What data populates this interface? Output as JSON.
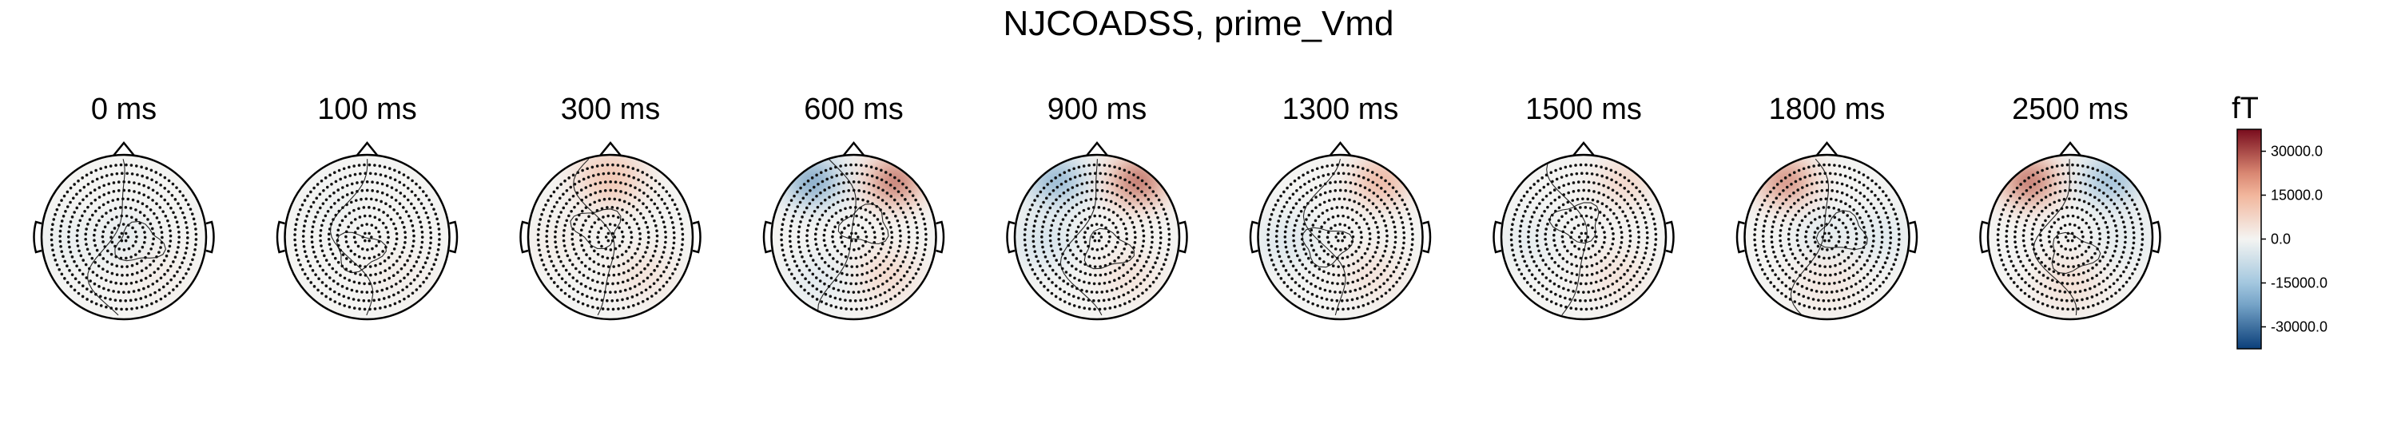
{
  "chart_data": {
    "type": "topomap",
    "title": "NJCOADSS, prime_Vmd",
    "unit": "fT",
    "colorbar": {
      "range": [
        -37500,
        37500
      ],
      "ticks": [
        30000.0,
        15000.0,
        0.0,
        -15000.0,
        -30000.0
      ],
      "tick_labels": [
        "30000.0",
        "15000.0",
        "0.0",
        "-15000.0",
        "-30000.0"
      ],
      "colormap": "RdBu_r",
      "colors": {
        "negative_max": "#0b3f7a",
        "negative_mid": "#8fbcda",
        "zero": "#f4f4f2",
        "positive_mid": "#f1a687",
        "positive_max": "#780c1d"
      }
    },
    "maps": [
      {
        "time": "0 ms",
        "blobs": [
          {
            "region": "center",
            "value": -4500
          },
          {
            "region": "right-lower",
            "value": 2500
          },
          {
            "region": "left",
            "value": -2500
          }
        ]
      },
      {
        "time": "100 ms",
        "blobs": [
          {
            "region": "left-upper",
            "value": -1500
          },
          {
            "region": "right-lower",
            "value": 2500
          }
        ]
      },
      {
        "time": "300 ms",
        "blobs": [
          {
            "region": "frontal",
            "value": 15000
          },
          {
            "region": "right-lower",
            "value": 6000
          },
          {
            "region": "left",
            "value": 2500
          }
        ]
      },
      {
        "time": "600 ms",
        "blobs": [
          {
            "region": "frontal-right",
            "value": 33000
          },
          {
            "region": "frontal-left",
            "value": -28000
          },
          {
            "region": "right-lower",
            "value": 9000
          },
          {
            "region": "left-lower",
            "value": -5000
          }
        ]
      },
      {
        "time": "900 ms",
        "blobs": [
          {
            "region": "frontal-right",
            "value": 35000
          },
          {
            "region": "frontal-left",
            "value": -24000
          },
          {
            "region": "left",
            "value": -8000
          },
          {
            "region": "right-lower",
            "value": 6000
          }
        ]
      },
      {
        "time": "1300 ms",
        "blobs": [
          {
            "region": "frontal-right",
            "value": 20000
          },
          {
            "region": "left",
            "value": -6000
          },
          {
            "region": "right-lower",
            "value": 6000
          }
        ]
      },
      {
        "time": "1500 ms",
        "blobs": [
          {
            "region": "frontal-right",
            "value": 10000
          },
          {
            "region": "left",
            "value": -3500
          },
          {
            "region": "right-lower",
            "value": 6000
          }
        ]
      },
      {
        "time": "1800 ms",
        "blobs": [
          {
            "region": "frontal-left",
            "value": 28000
          },
          {
            "region": "center",
            "value": -6000
          },
          {
            "region": "right",
            "value": -5000
          },
          {
            "region": "lower",
            "value": 4500
          }
        ]
      },
      {
        "time": "2500 ms",
        "blobs": [
          {
            "region": "frontal-left",
            "value": 34000
          },
          {
            "region": "frontal-right",
            "value": -22000
          },
          {
            "region": "lower",
            "value": 7000
          },
          {
            "region": "right",
            "value": -4000
          }
        ]
      }
    ]
  }
}
